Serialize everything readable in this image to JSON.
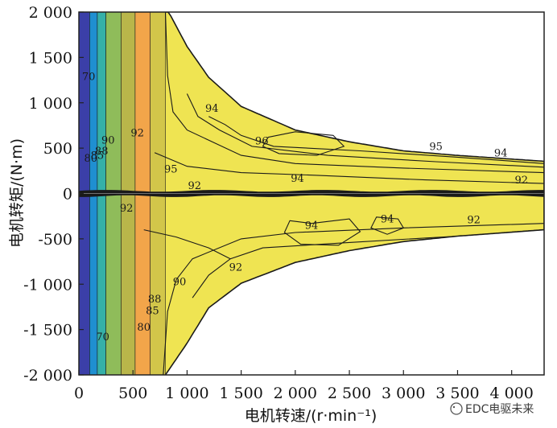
{
  "chart_data": {
    "type": "heatmap",
    "subtype": "filled-contour",
    "xlabel": "电机转速/(r·min⁻¹)",
    "ylabel": "电机转矩/(N·m)",
    "xlim": [
      0,
      4300
    ],
    "ylim": [
      -2000,
      2000
    ],
    "x_ticks": [
      0,
      500,
      1000,
      1500,
      2000,
      2500,
      3000,
      3500,
      4000
    ],
    "x_tick_labels": [
      "0",
      "500",
      "1 000",
      "1 500",
      "2 000",
      "2 500",
      "3 000",
      "3 500",
      "4 000"
    ],
    "y_ticks": [
      2000,
      1500,
      1000,
      500,
      0,
      -500,
      -1000,
      -1500,
      -2000
    ],
    "y_tick_labels": [
      "2 000",
      "1 500",
      "1 000",
      "500",
      "0",
      "-500",
      "-1 000",
      "-1 500",
      "-2 000"
    ],
    "grid": false,
    "colorbar": false,
    "contour_levels": [
      40,
      60,
      70,
      80,
      85,
      88,
      90,
      92,
      94,
      95,
      96
    ],
    "envelope_top": [
      [
        0,
        2000
      ],
      [
        830,
        2000
      ],
      [
        1000,
        1620
      ],
      [
        1200,
        1280
      ],
      [
        1500,
        960
      ],
      [
        2000,
        700
      ],
      [
        2500,
        570
      ],
      [
        3000,
        470
      ],
      [
        3500,
        420
      ],
      [
        4300,
        355
      ]
    ],
    "envelope_bottom": [
      [
        0,
        -2000
      ],
      [
        800,
        -2000
      ],
      [
        1000,
        -1650
      ],
      [
        1200,
        -1260
      ],
      [
        1500,
        -990
      ],
      [
        2000,
        -760
      ],
      [
        2500,
        -630
      ],
      [
        3000,
        -530
      ],
      [
        3500,
        -470
      ],
      [
        4300,
        -400
      ]
    ],
    "contour_annotations": [
      {
        "label": "70",
        "x": 90,
        "y": 1250
      },
      {
        "label": "80",
        "x": 110,
        "y": 350
      },
      {
        "label": "85",
        "x": 170,
        "y": 380
      },
      {
        "label": "88",
        "x": 210,
        "y": 430
      },
      {
        "label": "90",
        "x": 270,
        "y": 550
      },
      {
        "label": "92",
        "x": 540,
        "y": 630
      },
      {
        "label": "94",
        "x": 1230,
        "y": 900
      },
      {
        "label": "96",
        "x": 1690,
        "y": 540
      },
      {
        "label": "95",
        "x": 850,
        "y": 230
      },
      {
        "label": "95",
        "x": 3300,
        "y": 480
      },
      {
        "label": "94",
        "x": 3900,
        "y": 410
      },
      {
        "label": "94",
        "x": 2020,
        "y": 130
      },
      {
        "label": "92",
        "x": 440,
        "y": -200
      },
      {
        "label": "94",
        "x": 2150,
        "y": -390
      },
      {
        "label": "94",
        "x": 2850,
        "y": -320
      },
      {
        "label": "92",
        "x": 3650,
        "y": -330
      },
      {
        "label": "92",
        "x": 1450,
        "y": -850
      },
      {
        "label": "90",
        "x": 930,
        "y": -1010
      },
      {
        "label": "88",
        "x": 700,
        "y": -1200
      },
      {
        "label": "85",
        "x": 680,
        "y": -1330
      },
      {
        "label": "80",
        "x": 600,
        "y": -1510
      },
      {
        "label": "70",
        "x": 220,
        "y": -1620
      },
      {
        "label": "92",
        "x": 1070,
        "y": 50
      },
      {
        "label": "92",
        "x": 4090,
        "y": 110
      }
    ],
    "watermark": "EDC电驱未来"
  }
}
